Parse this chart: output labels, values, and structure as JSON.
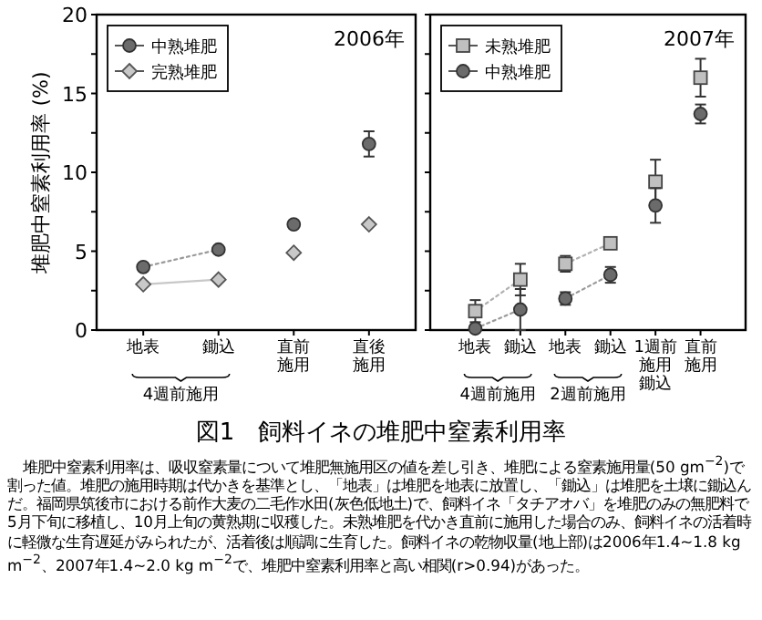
{
  "chart_data": [
    {
      "type": "scatter",
      "ylabel": "堆肥中窒素利用率 (%)",
      "categories": [
        "地表",
        "鋤込",
        "直前施用",
        "直後施用"
      ],
      "ylim": [
        0,
        20
      ],
      "yticks": [
        0,
        {
          "value": 2.5,
          "label": null
        },
        5,
        {
          "value": 7.5,
          "label": null
        },
        10,
        {
          "value": 12.5,
          "label": null
        },
        15,
        {
          "value": 17.5,
          "label": null
        },
        20
      ],
      "legend": "top left",
      "annotations": [
        "2006年",
        "4週前施用"
      ],
      "series": [
        {
          "type": "line",
          "color": "#9a9a9a",
          "line_style": "dotted",
          "values": [
            4.0,
            5.1,
            null,
            null
          ]
        },
        {
          "type": "line",
          "color": "#c8c8c8",
          "line_style": "solid",
          "values": [
            2.9,
            3.2,
            null,
            null
          ]
        },
        {
          "name": "中熟堆肥",
          "marker": "circle",
          "color": "#6b6b6b",
          "values": [
            4.0,
            5.1,
            6.7,
            11.8
          ],
          "errors": [
            null,
            null,
            null,
            0.8
          ]
        },
        {
          "name": "完熟堆肥",
          "marker": "diamond",
          "color": "#c8c8c8",
          "values": [
            2.9,
            3.2,
            4.9,
            6.7
          ]
        }
      ]
    },
    {
      "type": "scatter",
      "categories": [
        "地表",
        "鋤込",
        "地表",
        "鋤込",
        "1週前施用鋤込",
        "直前施用"
      ],
      "ylim": [
        0,
        20
      ],
      "yticks": [
        {
          "value": 0,
          "label": null
        },
        {
          "value": 2.5,
          "label": null
        },
        {
          "value": 5,
          "label": null
        },
        {
          "value": 7.5,
          "label": null
        },
        {
          "value": 10,
          "label": null
        },
        {
          "value": 12.5,
          "label": null
        },
        {
          "value": 15,
          "label": null
        },
        {
          "value": 17.5,
          "label": null
        },
        {
          "value": 20,
          "label": null
        }
      ],
      "tick_labels": "x",
      "legend": "top left",
      "annotations": [
        "2007年",
        "4週前施用",
        "2週前施用"
      ],
      "series": [
        {
          "type": "line",
          "color": "#b0b0b0",
          "line_style": "dotted",
          "values": [
            1.2,
            3.2,
            null,
            null,
            null,
            null
          ]
        },
        {
          "type": "line",
          "color": "#b0b0b0",
          "line_style": "dotted",
          "values": [
            null,
            null,
            4.2,
            5.5,
            null,
            null
          ]
        },
        {
          "type": "line",
          "color": "#9a9a9a",
          "line_style": "dotted",
          "values": [
            0.1,
            1.3,
            null,
            null,
            null,
            null
          ]
        },
        {
          "type": "line",
          "color": "#9a9a9a",
          "line_style": "dotted",
          "values": [
            null,
            null,
            2.0,
            3.5,
            null,
            null
          ]
        },
        {
          "name": "未熟堆肥",
          "marker": "square",
          "color": "#c0c0c0",
          "values": [
            1.2,
            3.2,
            4.2,
            5.5,
            9.4,
            16.0
          ],
          "errors": [
            0.7,
            1.0,
            0.5,
            null,
            1.4,
            1.2
          ]
        },
        {
          "name": "中熟堆肥",
          "marker": "circle",
          "color": "#6b6b6b",
          "values": [
            0.1,
            1.3,
            2.0,
            3.5,
            7.9,
            13.7
          ],
          "errors": [
            null,
            1.3,
            0.4,
            0.5,
            1.1,
            0.6
          ]
        }
      ]
    },
    {
      "type": "other",
      "title": "図1　飼料イネの堆肥中窒素利用率",
      "annotations": [
        "堆肥中窒素利用率は、吸収窒素量について堆肥無施用区の値を差し引き、堆肥による窒素施用量(50 gm$^{−2}$)で割った値。堆肥の施用時期は代かきを基準とし、「地表」は堆肥を地表に放置し、「鋤込」は堆肥を土壌に鋤込んだ。福岡県筑後市における前作大麦の二毛作水田(灰色低地土)で、飼料イネ「タチアオバ」を堆肥のみの無肥料で5月下旬に移植し、10月上旬の黄熟期に収穫した。未熟堆肥を代かき直前に施用した場合のみ、飼料イネの活着時に軽微な生育遅延がみられたが、活着後は順調に生育した。飼料イネの乾物収量(地上部)は2006年1.4~1.8 kg m$^{−2}$、2007年1.4~2.0 kg m$^{−2}$で、堆肥中窒素利用率と高い相関(r>0.94)があった。"
      ]
    }
  ]
}
